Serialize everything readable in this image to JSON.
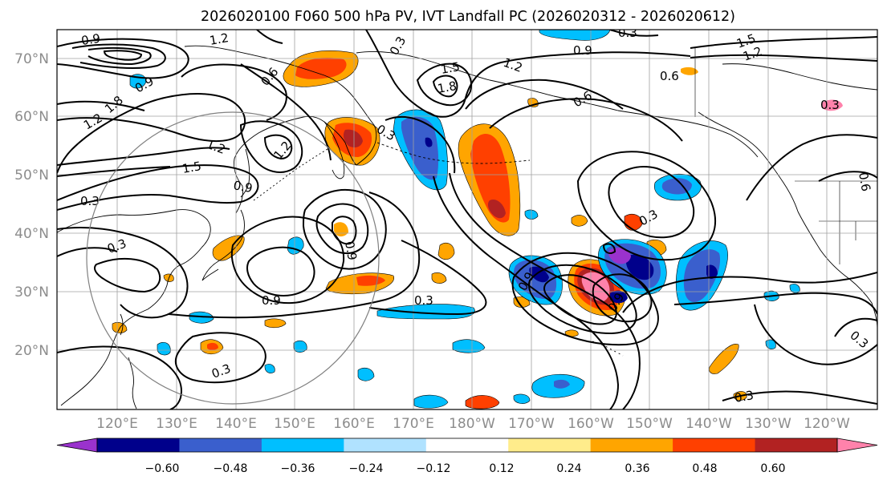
{
  "title": "2026020100 F060 500 hPa PV, IVT Landfall PC (2026020312 - 2026020612)",
  "map": {
    "lat_ticks": [
      "70°N",
      "60°N",
      "50°N",
      "40°N",
      "30°N",
      "20°N"
    ],
    "lon_ticks": [
      "120°E",
      "130°E",
      "140°E",
      "150°E",
      "160°E",
      "170°E",
      "180°W",
      "170°W",
      "160°W",
      "150°W",
      "140°W",
      "130°W",
      "120°W"
    ],
    "contour_labels": [
      "0.3",
      "0.6",
      "0.9",
      "1.2",
      "1.5",
      "1.8"
    ],
    "ring_circle": true
  },
  "colorbar": {
    "ticks": [
      "−0.60",
      "−0.48",
      "−0.36",
      "−0.24",
      "−0.12",
      "0.12",
      "0.24",
      "0.36",
      "0.48",
      "0.60"
    ],
    "colors": [
      "#9a32cd",
      "#00008b",
      "#3a5fcd",
      "#00bfff",
      "#b0e2ff",
      "#ffffff",
      "#ffec8b",
      "#ffa500",
      "#ff4000",
      "#b22222",
      "#ff82ab"
    ],
    "extend": "both"
  }
}
